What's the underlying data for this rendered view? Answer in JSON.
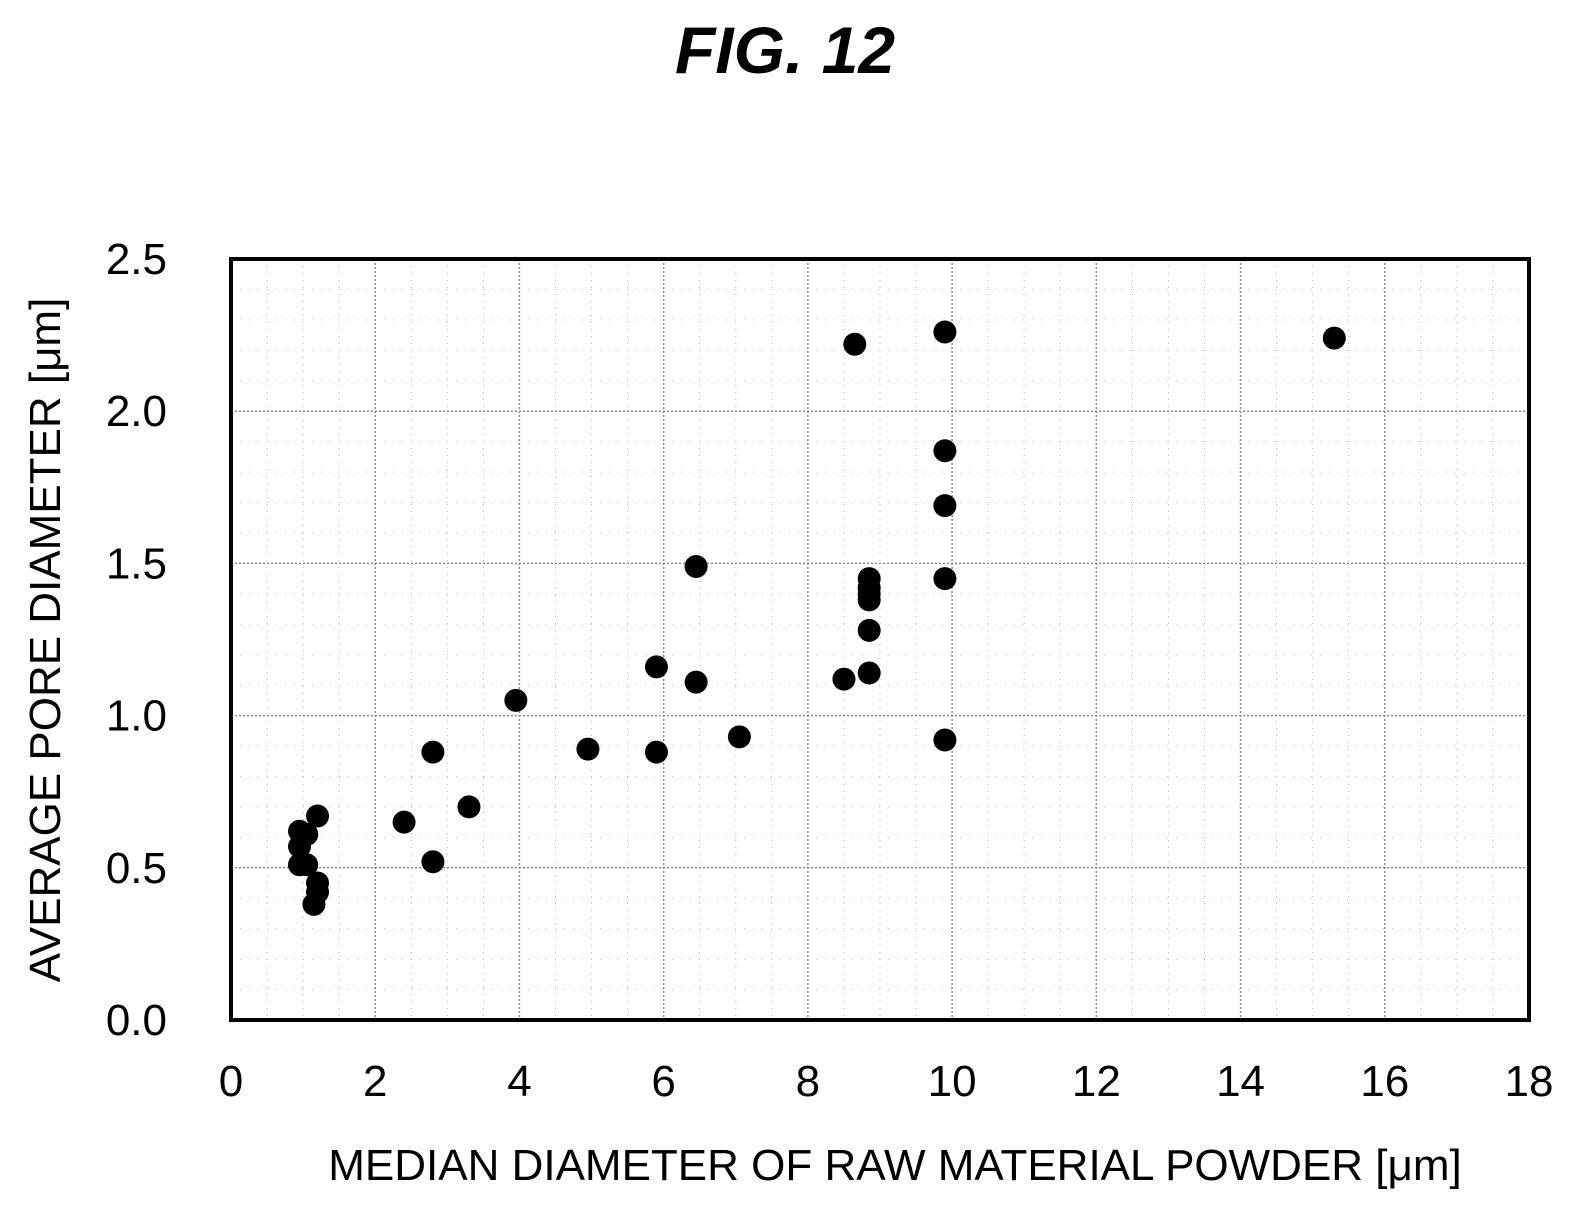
{
  "figure": {
    "title": "FIG. 12"
  },
  "chart_data": {
    "type": "scatter",
    "xlabel": "MEDIAN DIAMETER OF RAW MATERIAL POWDER [μm]",
    "ylabel": "AVERAGE PORE DIAMETER [μm]",
    "xlim": [
      0,
      18
    ],
    "ylim": [
      0,
      2.5
    ],
    "x_ticks": [
      "0",
      "2",
      "4",
      "6",
      "8",
      "10",
      "12",
      "14",
      "16",
      "18"
    ],
    "y_ticks": [
      "0.0",
      "0.5",
      "1.0",
      "1.5",
      "2.0",
      "2.5"
    ],
    "grid": true,
    "legend": "none",
    "marker_color": "#000000",
    "series": [
      {
        "points": [
          [
            0.95,
            0.62
          ],
          [
            0.95,
            0.57
          ],
          [
            0.95,
            0.51
          ],
          [
            1.05,
            0.61
          ],
          [
            1.05,
            0.51
          ],
          [
            1.2,
            0.67
          ],
          [
            1.2,
            0.45
          ],
          [
            1.2,
            0.42
          ],
          [
            1.15,
            0.38
          ],
          [
            2.4,
            0.65
          ],
          [
            2.8,
            0.88
          ],
          [
            2.8,
            0.52
          ],
          [
            3.3,
            0.7
          ],
          [
            3.95,
            1.05
          ],
          [
            4.95,
            0.89
          ],
          [
            5.9,
            1.16
          ],
          [
            5.9,
            0.88
          ],
          [
            6.45,
            1.49
          ],
          [
            6.45,
            1.11
          ],
          [
            7.05,
            0.93
          ],
          [
            8.5,
            1.12
          ],
          [
            8.65,
            2.22
          ],
          [
            8.85,
            1.45
          ],
          [
            8.85,
            1.42
          ],
          [
            8.85,
            1.4
          ],
          [
            8.85,
            1.38
          ],
          [
            8.85,
            1.28
          ],
          [
            8.85,
            1.14
          ],
          [
            9.9,
            2.26
          ],
          [
            9.9,
            1.87
          ],
          [
            9.9,
            1.69
          ],
          [
            9.9,
            1.45
          ],
          [
            9.9,
            0.92
          ],
          [
            15.3,
            2.24
          ]
        ]
      }
    ]
  }
}
